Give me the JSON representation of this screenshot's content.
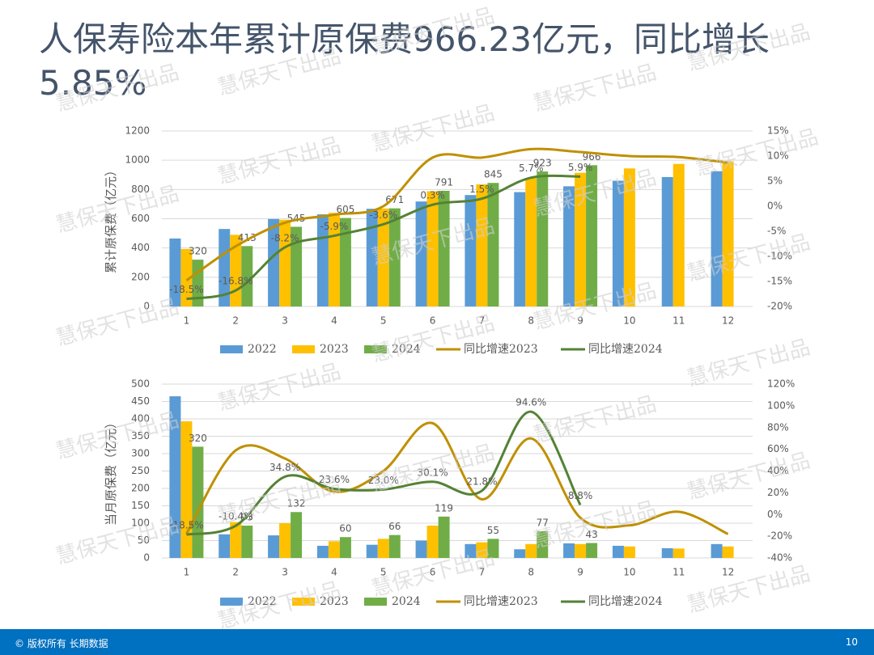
{
  "title": "人保寿险本年累计原保费966.23亿元，同比增长5.85%",
  "watermark": "慧保天下出品",
  "footer": "© 版权所有 长期数据",
  "page": "10",
  "chart_data": [
    {
      "type": "bar",
      "y_label": "累计原保费（亿元）",
      "categories": [
        "1",
        "2",
        "3",
        "4",
        "5",
        "6",
        "7",
        "8",
        "9",
        "10",
        "11",
        "12"
      ],
      "ylim": [
        0,
        1200
      ],
      "yticks": [
        0,
        200,
        400,
        600,
        800,
        1000,
        1200
      ],
      "y2lim": [
        -20,
        15
      ],
      "y2ticks": [
        {
          "value": -20,
          "label": "-20%"
        },
        {
          "value": -15,
          "label": "-15%"
        },
        {
          "value": -10,
          "label": "-10%"
        },
        {
          "value": -5,
          "label": "-5%"
        },
        {
          "value": 0,
          "label": "0%"
        },
        {
          "value": 5,
          "label": "5%"
        },
        {
          "value": 10,
          "label": "10%"
        },
        {
          "value": 15,
          "label": "15%"
        }
      ],
      "grid": true,
      "series": [
        {
          "name": "2022",
          "type": "bar",
          "color": "#5b9bd5",
          "values": [
            465,
            530,
            598,
            630,
            668,
            718,
            762,
            782,
            822,
            860,
            885,
            925
          ]
        },
        {
          "name": "2023",
          "type": "bar",
          "color": "#ffc000",
          "values": [
            393,
            490,
            593,
            640,
            670,
            788,
            835,
            877,
            914,
            944,
            975,
            993
          ]
        },
        {
          "name": "2024",
          "type": "bar",
          "color": "#70ad47",
          "labels": true,
          "values": [
            320,
            413,
            545,
            605,
            671,
            791,
            845,
            923,
            966,
            null,
            null,
            null
          ]
        },
        {
          "name": "同比增速2023",
          "type": "line",
          "axis": "y2",
          "color": "#bf9000",
          "values": [
            -14.8,
            -8,
            -3.3,
            -1.7,
            0,
            9.7,
            9.7,
            11.4,
            10.8,
            10,
            9.8,
            8.7
          ]
        },
        {
          "name": "同比增速2024",
          "type": "line",
          "axis": "y2",
          "color": "#548235",
          "values": [
            -18.5,
            -16.8,
            -8.2,
            -5.9,
            -3.6,
            0.3,
            1.5,
            5.7,
            5.9,
            null,
            null,
            null
          ],
          "value_labels": [
            "-18.5%",
            "-16.8%",
            "-8.2%",
            "-5.9%",
            "-3.6%",
            "0.3%",
            "1.5%",
            "5.7%",
            "5.9%",
            null,
            null,
            null
          ]
        }
      ]
    },
    {
      "type": "bar",
      "y_label": "当月原保费（亿元）",
      "categories": [
        "1",
        "2",
        "3",
        "4",
        "5",
        "6",
        "7",
        "8",
        "9",
        "10",
        "11",
        "12"
      ],
      "ylim": [
        0,
        500
      ],
      "yticks": [
        0,
        50,
        100,
        150,
        200,
        250,
        300,
        350,
        400,
        450,
        500
      ],
      "y2lim": [
        -40,
        120
      ],
      "y2ticks": [
        {
          "value": -40,
          "label": "-40%"
        },
        {
          "value": -20,
          "label": "-20%"
        },
        {
          "value": 0,
          "label": "0%"
        },
        {
          "value": 20,
          "label": "20%"
        },
        {
          "value": 40,
          "label": "40%"
        },
        {
          "value": 60,
          "label": "60%"
        },
        {
          "value": 80,
          "label": "80%"
        },
        {
          "value": 100,
          "label": "100%"
        },
        {
          "value": 120,
          "label": "120%"
        }
      ],
      "grid": true,
      "series": [
        {
          "name": "2022",
          "type": "bar",
          "color": "#5b9bd5",
          "values": [
            465,
            68,
            65,
            35,
            38,
            50,
            40,
            25,
            42,
            35,
            28,
            40
          ]
        },
        {
          "name": "2023",
          "type": "bar",
          "color": "#ffc000",
          "values": [
            393,
            103,
            100,
            48,
            55,
            93,
            45,
            40,
            40,
            33,
            27,
            33
          ]
        },
        {
          "name": "2024",
          "type": "bar",
          "color": "#70ad47",
          "labels": true,
          "values": [
            320,
            93,
            132,
            60,
            66,
            119,
            55,
            77,
            43,
            null,
            null,
            null
          ]
        },
        {
          "name": "同比增速2023",
          "type": "line",
          "axis": "y2",
          "color": "#bf9000",
          "values": [
            -17.7,
            59,
            51.5,
            21,
            40,
            84,
            14,
            70,
            -3,
            -10,
            2.5,
            -18
          ]
        },
        {
          "name": "同比增速2024",
          "type": "line",
          "axis": "y2",
          "color": "#548235",
          "values": [
            -18.5,
            -10.4,
            34.8,
            23.6,
            23.0,
            30.1,
            21.8,
            94.6,
            8.8,
            null,
            null,
            null
          ],
          "value_labels": [
            "-18.5%",
            "-10.4%",
            "34.8%",
            "23.6%",
            "23.0%",
            "30.1%",
            "21.8%",
            "94.6%",
            "8.8%",
            null,
            null,
            null
          ]
        }
      ]
    }
  ]
}
